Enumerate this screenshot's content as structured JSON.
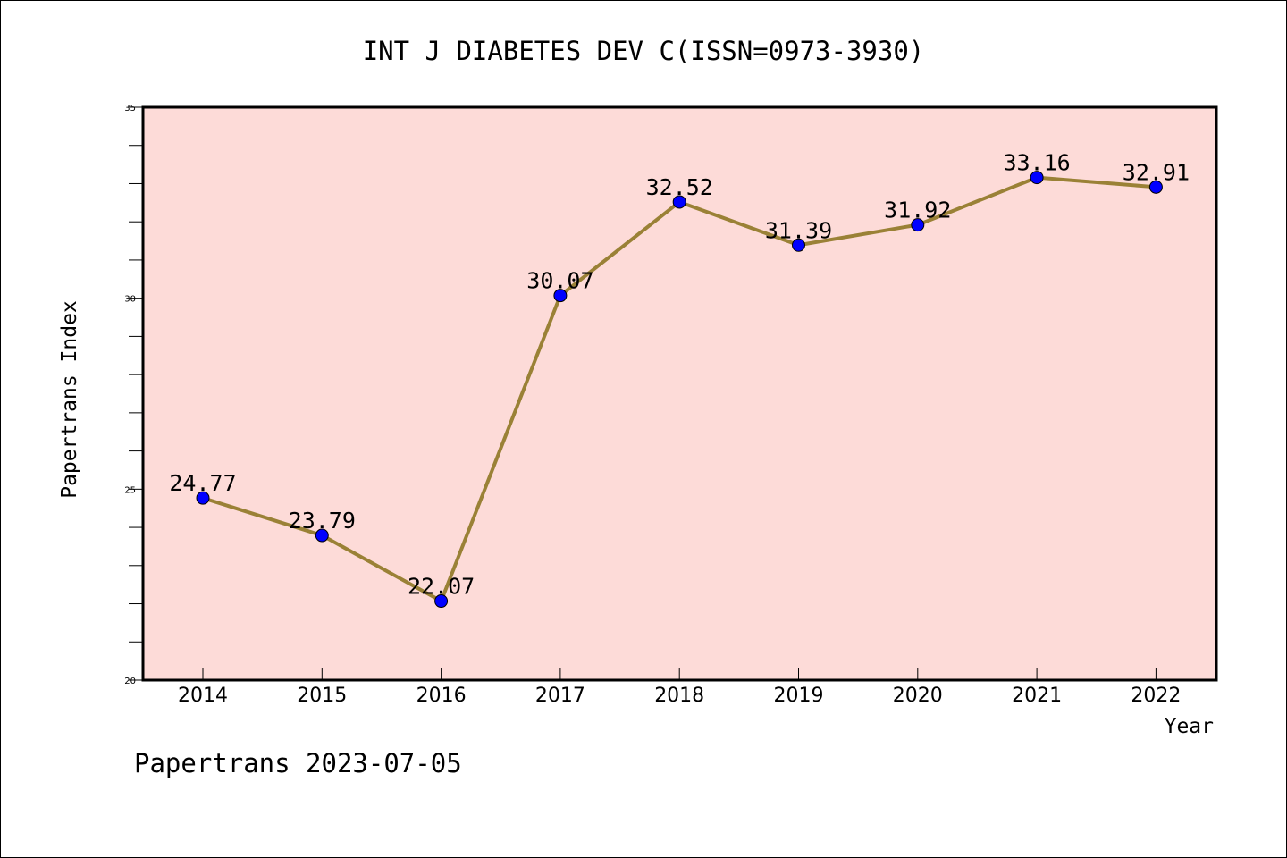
{
  "chart_data": {
    "type": "line",
    "title": "INT J DIABETES DEV C(ISSN=0973-3930)",
    "xlabel": "Year",
    "ylabel": "Papertrans Index",
    "categories": [
      "2014",
      "2015",
      "2016",
      "2017",
      "2018",
      "2019",
      "2020",
      "2021",
      "2022"
    ],
    "values": [
      24.77,
      23.79,
      22.07,
      30.07,
      32.52,
      31.39,
      31.92,
      33.16,
      32.91
    ],
    "value_labels": [
      "24.77",
      "23.79",
      "22.07",
      "30.07",
      "32.52",
      "31.39",
      "31.92",
      "33.16",
      "32.91"
    ],
    "ylim": [
      20,
      35
    ],
    "yticks": [
      20,
      25,
      30,
      35
    ],
    "ytick_labels": [
      "20",
      "25",
      "30",
      "35"
    ],
    "minor_step": 1,
    "grid": false,
    "colors": {
      "plot_background": "#fddbd8",
      "line": "#9a8136",
      "marker": "#0000ff",
      "marker_edge": "#000000",
      "frame": "#000000"
    }
  },
  "footer": {
    "text": "Papertrans 2023-07-05"
  }
}
